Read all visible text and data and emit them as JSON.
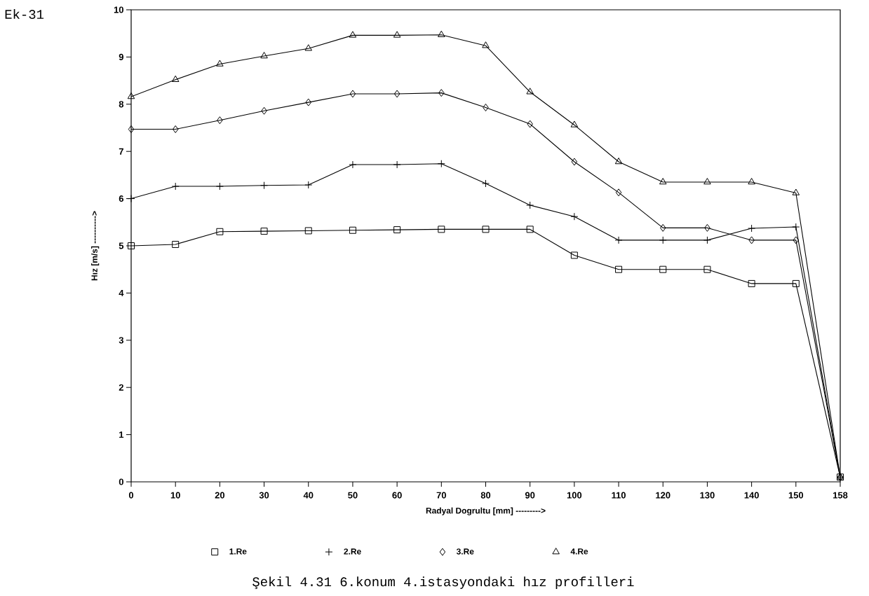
{
  "chart_data": {
    "type": "line",
    "xlabel": "Radyal Dogrultu [mm] --------->",
    "ylabel": "Hız  [m/s] ---------->",
    "annotations": [
      "Ek-31",
      "Şekil 4.31  6.konum  4.istasyondaki hız profilleri"
    ],
    "categories": [
      "0",
      "10",
      "20",
      "30",
      "40",
      "50",
      "60",
      "70",
      "80",
      "90",
      "100",
      "110",
      "120",
      "130",
      "140",
      "150",
      "158"
    ],
    "ylim": [
      0,
      10
    ],
    "yticks": [
      0,
      1,
      2,
      3,
      4,
      5,
      6,
      7,
      8,
      9,
      10
    ],
    "grid": false,
    "legend": "bottom",
    "line_style": "solid",
    "series": [
      {
        "name": "1.Re",
        "color": "#000000",
        "marker": "square",
        "values": [
          5.0,
          5.03,
          5.3,
          5.31,
          5.32,
          5.33,
          5.34,
          5.35,
          5.35,
          5.35,
          4.8,
          4.5,
          4.5,
          4.5,
          4.2,
          4.2,
          0.1
        ]
      },
      {
        "name": "2.Re",
        "color": "#000000",
        "marker": "cross",
        "values": [
          6.0,
          6.26,
          6.26,
          6.28,
          6.29,
          6.72,
          6.72,
          6.74,
          6.32,
          5.86,
          5.62,
          5.12,
          5.12,
          5.12,
          5.37,
          5.4,
          0.1
        ]
      },
      {
        "name": "3.Re",
        "color": "#000000",
        "marker": "diamond",
        "values": [
          7.47,
          7.47,
          7.66,
          7.86,
          8.04,
          8.22,
          8.22,
          8.24,
          7.93,
          7.58,
          6.78,
          6.13,
          5.38,
          5.38,
          5.12,
          5.12,
          0.1
        ]
      },
      {
        "name": "4.Re",
        "color": "#000000",
        "marker": "triangle",
        "values": [
          8.16,
          8.52,
          8.85,
          9.02,
          9.18,
          9.46,
          9.46,
          9.47,
          9.24,
          8.26,
          7.56,
          6.78,
          6.35,
          6.35,
          6.35,
          6.12,
          0.1
        ]
      }
    ]
  }
}
